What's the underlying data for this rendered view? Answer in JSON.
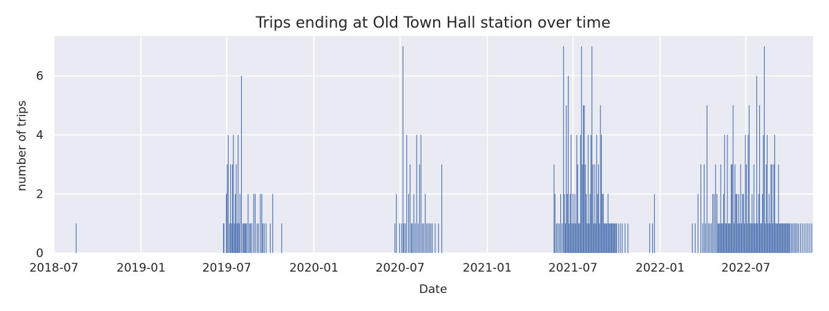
{
  "chart_data": {
    "type": "bar",
    "title": "Trips ending at Old Town Hall station over time",
    "xlabel": "Date",
    "ylabel": "number of trips",
    "xlim": [
      "2018-07-01",
      "2022-11-20"
    ],
    "ylim": [
      0,
      7.35
    ],
    "xticks": [
      "2018-07",
      "2019-01",
      "2019-07",
      "2020-01",
      "2020-07",
      "2021-01",
      "2021-07",
      "2022-01",
      "2022-07"
    ],
    "yticks": [
      0,
      2,
      4,
      6
    ],
    "grid": true,
    "series": [
      {
        "x": [
          "2018-08-17",
          "2019-06-24",
          "2019-06-25",
          "2019-06-30",
          "2019-07-02",
          "2019-07-04",
          "2019-07-07",
          "2019-07-09",
          "2019-07-11",
          "2019-07-13",
          "2019-07-15",
          "2019-07-17",
          "2019-07-19",
          "2019-07-21",
          "2019-07-23",
          "2019-07-25",
          "2019-07-27",
          "2019-07-29",
          "2019-08-01",
          "2019-08-04",
          "2019-08-06",
          "2019-08-08",
          "2019-08-10",
          "2019-08-12",
          "2019-08-15",
          "2019-08-18",
          "2019-08-20",
          "2019-08-23",
          "2019-08-27",
          "2019-08-30",
          "2019-09-03",
          "2019-09-06",
          "2019-09-10",
          "2019-09-13",
          "2019-09-15",
          "2019-09-18",
          "2019-09-22",
          "2019-10-01",
          "2019-10-06",
          "2019-10-25",
          "2020-06-20",
          "2020-06-23",
          "2020-06-30",
          "2020-07-04",
          "2020-07-07",
          "2020-07-09",
          "2020-07-12",
          "2020-07-15",
          "2020-07-19",
          "2020-07-22",
          "2020-07-25",
          "2020-07-27",
          "2020-07-30",
          "2020-08-02",
          "2020-08-05",
          "2020-08-08",
          "2020-08-11",
          "2020-08-14",
          "2020-08-17",
          "2020-08-20",
          "2020-08-23",
          "2020-08-26",
          "2020-08-29",
          "2020-09-01",
          "2020-09-04",
          "2020-09-07",
          "2020-09-13",
          "2020-09-20",
          "2020-09-27",
          "2021-05-22",
          "2021-05-24",
          "2021-05-27",
          "2021-05-30",
          "2021-06-02",
          "2021-06-05",
          "2021-06-08",
          "2021-06-11",
          "2021-06-13",
          "2021-06-15",
          "2021-06-17",
          "2021-06-19",
          "2021-06-21",
          "2021-06-23",
          "2021-06-25",
          "2021-06-27",
          "2021-06-29",
          "2021-07-01",
          "2021-07-03",
          "2021-07-05",
          "2021-07-07",
          "2021-07-09",
          "2021-07-11",
          "2021-07-13",
          "2021-07-15",
          "2021-07-17",
          "2021-07-19",
          "2021-07-21",
          "2021-07-23",
          "2021-07-25",
          "2021-07-27",
          "2021-07-29",
          "2021-07-31",
          "2021-08-02",
          "2021-08-04",
          "2021-08-06",
          "2021-08-08",
          "2021-08-10",
          "2021-08-12",
          "2021-08-14",
          "2021-08-16",
          "2021-08-18",
          "2021-08-20",
          "2021-08-22",
          "2021-08-24",
          "2021-08-26",
          "2021-08-28",
          "2021-08-30",
          "2021-09-01",
          "2021-09-03",
          "2021-09-05",
          "2021-09-07",
          "2021-09-09",
          "2021-09-11",
          "2021-09-13",
          "2021-09-15",
          "2021-09-17",
          "2021-09-19",
          "2021-09-21",
          "2021-09-23",
          "2021-09-25",
          "2021-09-27",
          "2021-09-29",
          "2021-10-01",
          "2021-10-05",
          "2021-10-09",
          "2021-10-13",
          "2021-10-19",
          "2021-10-25",
          "2021-12-10",
          "2021-12-16",
          "2021-12-20",
          "2022-03-10",
          "2022-03-16",
          "2022-03-22",
          "2022-03-28",
          "2022-04-01",
          "2022-04-04",
          "2022-04-07",
          "2022-04-10",
          "2022-04-13",
          "2022-04-16",
          "2022-04-19",
          "2022-04-22",
          "2022-04-25",
          "2022-04-28",
          "2022-05-01",
          "2022-05-03",
          "2022-05-05",
          "2022-05-07",
          "2022-05-09",
          "2022-05-11",
          "2022-05-13",
          "2022-05-15",
          "2022-05-17",
          "2022-05-19",
          "2022-05-21",
          "2022-05-23",
          "2022-05-25",
          "2022-05-27",
          "2022-05-29",
          "2022-05-31",
          "2022-06-02",
          "2022-06-04",
          "2022-06-06",
          "2022-06-08",
          "2022-06-10",
          "2022-06-12",
          "2022-06-14",
          "2022-06-16",
          "2022-06-18",
          "2022-06-20",
          "2022-06-22",
          "2022-06-24",
          "2022-06-26",
          "2022-06-28",
          "2022-06-30",
          "2022-07-02",
          "2022-07-04",
          "2022-07-06",
          "2022-07-08",
          "2022-07-10",
          "2022-07-12",
          "2022-07-14",
          "2022-07-16",
          "2022-07-18",
          "2022-07-20",
          "2022-07-22",
          "2022-07-24",
          "2022-07-26",
          "2022-07-28",
          "2022-07-30",
          "2022-08-01",
          "2022-08-03",
          "2022-08-05",
          "2022-08-07",
          "2022-08-09",
          "2022-08-11",
          "2022-08-13",
          "2022-08-15",
          "2022-08-17",
          "2022-08-19",
          "2022-08-21",
          "2022-08-23",
          "2022-08-25",
          "2022-08-27",
          "2022-08-29",
          "2022-08-31",
          "2022-09-02",
          "2022-09-04",
          "2022-09-06",
          "2022-09-08",
          "2022-09-10",
          "2022-09-12",
          "2022-09-14",
          "2022-09-16",
          "2022-09-18",
          "2022-09-20",
          "2022-09-22",
          "2022-09-24",
          "2022-09-26",
          "2022-09-28",
          "2022-09-30",
          "2022-10-02",
          "2022-10-05",
          "2022-10-08",
          "2022-10-11",
          "2022-10-14",
          "2022-10-17",
          "2022-10-20",
          "2022-10-24",
          "2022-10-28",
          "2022-11-01",
          "2022-11-05",
          "2022-11-09",
          "2022-11-13",
          "2022-11-17"
        ],
        "values": [
          1,
          1,
          1,
          2,
          3,
          4,
          1,
          3,
          1,
          3,
          4,
          1,
          2,
          3,
          1,
          4,
          1,
          2,
          6,
          1,
          1,
          1,
          1,
          1,
          2,
          1,
          1,
          1,
          2,
          2,
          1,
          1,
          2,
          2,
          1,
          1,
          1,
          1,
          2,
          1,
          1,
          2,
          1,
          1,
          7,
          1,
          1,
          4,
          2,
          3,
          1,
          1,
          2,
          1,
          4,
          1,
          3,
          4,
          1,
          1,
          2,
          1,
          1,
          1,
          1,
          1,
          1,
          1,
          3,
          3,
          2,
          1,
          1,
          1,
          2,
          1,
          7,
          2,
          1,
          5,
          2,
          6,
          1,
          2,
          4,
          1,
          2,
          1,
          2,
          1,
          4,
          3,
          1,
          1,
          4,
          7,
          3,
          5,
          5,
          3,
          2,
          1,
          4,
          1,
          2,
          4,
          7,
          3,
          1,
          3,
          1,
          4,
          2,
          3,
          1,
          5,
          4,
          2,
          2,
          1,
          1,
          1,
          1,
          2,
          1,
          1,
          1,
          1,
          1,
          1,
          1,
          1,
          1,
          1,
          1,
          1,
          1,
          1,
          1,
          1,
          2,
          1,
          1,
          2,
          3,
          1,
          3,
          1,
          5,
          1,
          1,
          1,
          2,
          2,
          3,
          2,
          1,
          1,
          1,
          3,
          1,
          1,
          2,
          4,
          1,
          1,
          4,
          1,
          1,
          1,
          3,
          3,
          5,
          1,
          3,
          2,
          2,
          1,
          2,
          1,
          3,
          1,
          2,
          2,
          1,
          4,
          3,
          1,
          4,
          5,
          1,
          1,
          2,
          1,
          3,
          1,
          1,
          6,
          1,
          2,
          5,
          1,
          1,
          2,
          4,
          7,
          1,
          3,
          4,
          1,
          2,
          1,
          3,
          3,
          1,
          3,
          4,
          1,
          1,
          1,
          3,
          1,
          1,
          1,
          1,
          1,
          1,
          1,
          1,
          1,
          1,
          1,
          1,
          1,
          1,
          1,
          1,
          1,
          1,
          1,
          1,
          1,
          1,
          1,
          1,
          1
        ]
      }
    ]
  }
}
